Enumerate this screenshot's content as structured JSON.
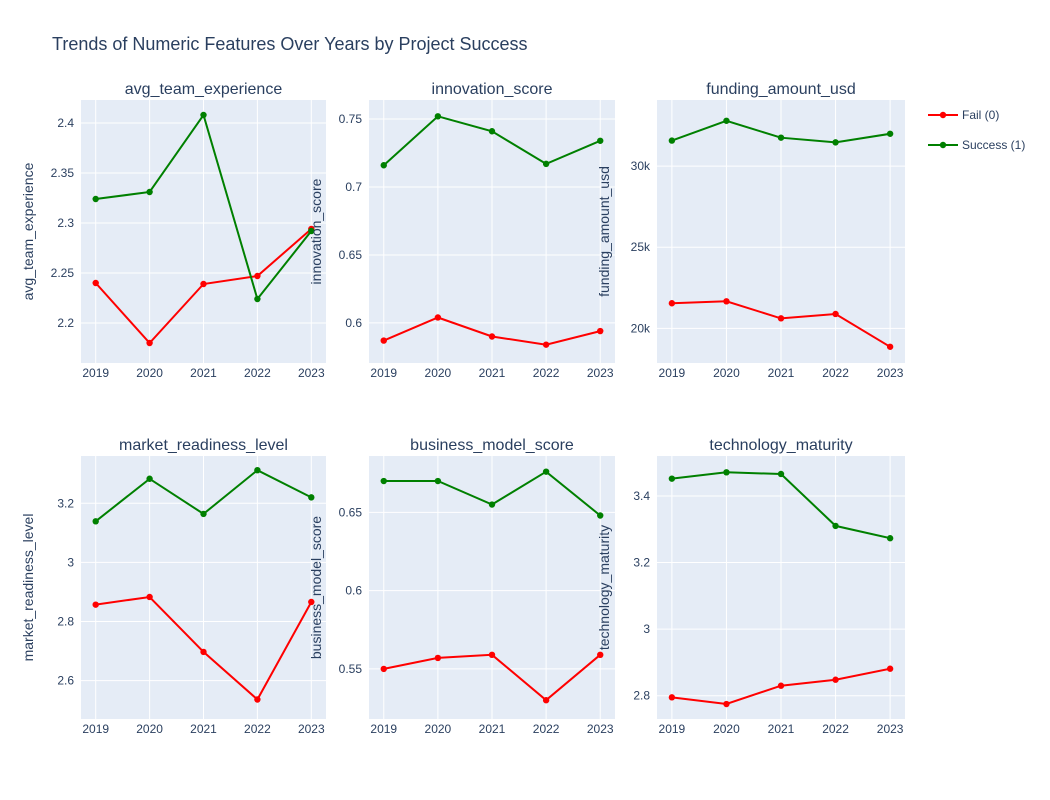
{
  "title": "Trends of Numeric Features Over Years by Project Success",
  "colors": {
    "fail": "#ff0000",
    "success": "#008000",
    "plot_bg": "#e5ecf6",
    "grid": "#ffffff",
    "text": "#2a3f5f"
  },
  "legend": {
    "placement": "right-top",
    "items": [
      "Fail (0)",
      "Success (1)"
    ]
  },
  "chart_data": [
    {
      "type": "line",
      "title": "avg_team_experience",
      "ylabel": "avg_team_experience",
      "x": [
        2019,
        2020,
        2021,
        2022,
        2023
      ],
      "x_tick_labels": [
        "2019",
        "2020",
        "2021",
        "2022",
        "2023"
      ],
      "ylim": [
        2.16,
        2.423
      ],
      "yticks": [
        2.2,
        2.25,
        2.3,
        2.35,
        2.4
      ],
      "ytick_labels": [
        "2.2",
        "2.25",
        "2.3",
        "2.35",
        "2.4"
      ],
      "series": [
        {
          "name": "Fail (0)",
          "values": [
            2.24,
            2.18,
            2.239,
            2.247,
            2.294
          ]
        },
        {
          "name": "Success (1)",
          "values": [
            2.324,
            2.331,
            2.408,
            2.224,
            2.292
          ]
        }
      ]
    },
    {
      "type": "line",
      "title": "innovation_score",
      "ylabel": "innovation_score",
      "x": [
        2019,
        2020,
        2021,
        2022,
        2023
      ],
      "x_tick_labels": [
        "2019",
        "2020",
        "2021",
        "2022",
        "2023"
      ],
      "ylim": [
        0.5705,
        0.764
      ],
      "yticks": [
        0.6,
        0.65,
        0.7,
        0.75
      ],
      "ytick_labels": [
        "0.6",
        "0.65",
        "0.7",
        "0.75"
      ],
      "series": [
        {
          "name": "Fail (0)",
          "values": [
            0.587,
            0.604,
            0.59,
            0.584,
            0.594
          ]
        },
        {
          "name": "Success (1)",
          "values": [
            0.716,
            0.752,
            0.741,
            0.717,
            0.734
          ]
        }
      ]
    },
    {
      "type": "line",
      "title": "funding_amount_usd",
      "ylabel": "funding_amount_usd",
      "x": [
        2019,
        2020,
        2021,
        2022,
        2023
      ],
      "x_tick_labels": [
        "2019",
        "2020",
        "2021",
        "2022",
        "2023"
      ],
      "ylim": [
        17870,
        34070
      ],
      "yticks": [
        20000,
        25000,
        30000
      ],
      "ytick_labels": [
        "20k",
        "25k",
        "30k"
      ],
      "series": [
        {
          "name": "Fail (0)",
          "values": [
            21550,
            21670,
            20620,
            20890,
            18870
          ]
        },
        {
          "name": "Success (1)",
          "values": [
            31570,
            32790,
            31750,
            31460,
            31990
          ]
        }
      ]
    },
    {
      "type": "line",
      "title": "market_readiness_level",
      "ylabel": "market_readiness_level",
      "x": [
        2019,
        2020,
        2021,
        2022,
        2023
      ],
      "x_tick_labels": [
        "2019",
        "2020",
        "2021",
        "2022",
        "2023"
      ],
      "ylim": [
        2.47,
        3.36
      ],
      "yticks": [
        2.6,
        2.8,
        3.0,
        3.2
      ],
      "ytick_labels": [
        "2.6",
        "2.8",
        "3",
        "3.2"
      ],
      "series": [
        {
          "name": "Fail (0)",
          "values": [
            2.857,
            2.883,
            2.697,
            2.536,
            2.866
          ]
        },
        {
          "name": "Success (1)",
          "values": [
            3.139,
            3.283,
            3.164,
            3.312,
            3.22
          ]
        }
      ]
    },
    {
      "type": "line",
      "title": "business_model_score",
      "ylabel": "business_model_score",
      "x": [
        2019,
        2020,
        2021,
        2022,
        2023
      ],
      "x_tick_labels": [
        "2019",
        "2020",
        "2021",
        "2022",
        "2023"
      ],
      "ylim": [
        0.518,
        0.686
      ],
      "yticks": [
        0.55,
        0.6,
        0.65
      ],
      "ytick_labels": [
        "0.55",
        "0.6",
        "0.65"
      ],
      "series": [
        {
          "name": "Fail (0)",
          "values": [
            0.55,
            0.557,
            0.559,
            0.53,
            0.559
          ]
        },
        {
          "name": "Success (1)",
          "values": [
            0.67,
            0.67,
            0.655,
            0.676,
            0.648
          ]
        }
      ]
    },
    {
      "type": "line",
      "title": "technology_maturity",
      "ylabel": "technology_maturity",
      "x": [
        2019,
        2020,
        2021,
        2022,
        2023
      ],
      "x_tick_labels": [
        "2019",
        "2020",
        "2021",
        "2022",
        "2023"
      ],
      "ylim": [
        2.73,
        3.52
      ],
      "yticks": [
        2.8,
        3.0,
        3.2,
        3.4
      ],
      "ytick_labels": [
        "2.8",
        "3",
        "3.2",
        "3.4"
      ],
      "series": [
        {
          "name": "Fail (0)",
          "values": [
            2.795,
            2.775,
            2.83,
            2.848,
            2.881
          ]
        },
        {
          "name": "Success (1)",
          "values": [
            3.452,
            3.471,
            3.466,
            3.31,
            3.273
          ]
        }
      ]
    }
  ]
}
